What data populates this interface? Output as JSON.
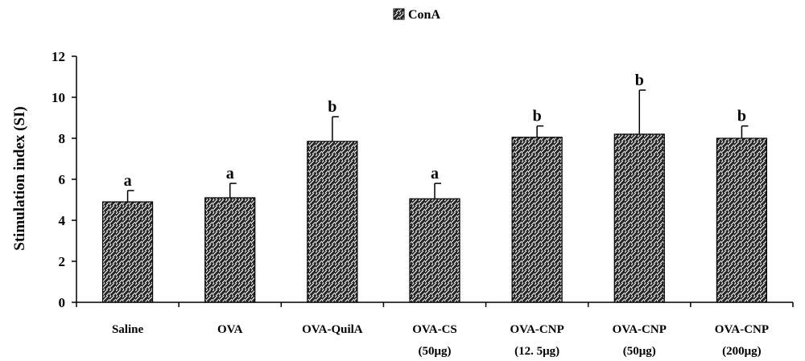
{
  "chart_data": {
    "type": "bar",
    "title": "",
    "legend": {
      "label": "ConA",
      "placement": "top-center"
    },
    "xlabel": "",
    "ylabel": "Stimulation index (SI)",
    "ylim": [
      0,
      12
    ],
    "yticks": [
      0,
      2,
      4,
      6,
      8,
      10,
      12
    ],
    "ytick_labels": [
      "0",
      "2",
      "4",
      "6",
      "8",
      "10",
      "12"
    ],
    "grid": false,
    "categories": [
      [
        "Saline"
      ],
      [
        "OVA"
      ],
      [
        "OVA-QuilA"
      ],
      [
        "OVA-CS",
        "(50μg)"
      ],
      [
        "OVA-CNP",
        "(12. 5μg)"
      ],
      [
        "OVA-CNP",
        "(50μg)"
      ],
      [
        "OVA-CNP",
        "(200μg)"
      ]
    ],
    "series": [
      {
        "name": "ConA",
        "values": [
          4.9,
          5.1,
          7.85,
          5.05,
          8.05,
          8.2,
          8.0
        ],
        "error_upper": [
          0.55,
          0.7,
          1.2,
          0.75,
          0.55,
          2.15,
          0.6
        ],
        "annotations": [
          "a",
          "a",
          "b",
          "a",
          "b",
          "b",
          "b"
        ]
      }
    ]
  }
}
